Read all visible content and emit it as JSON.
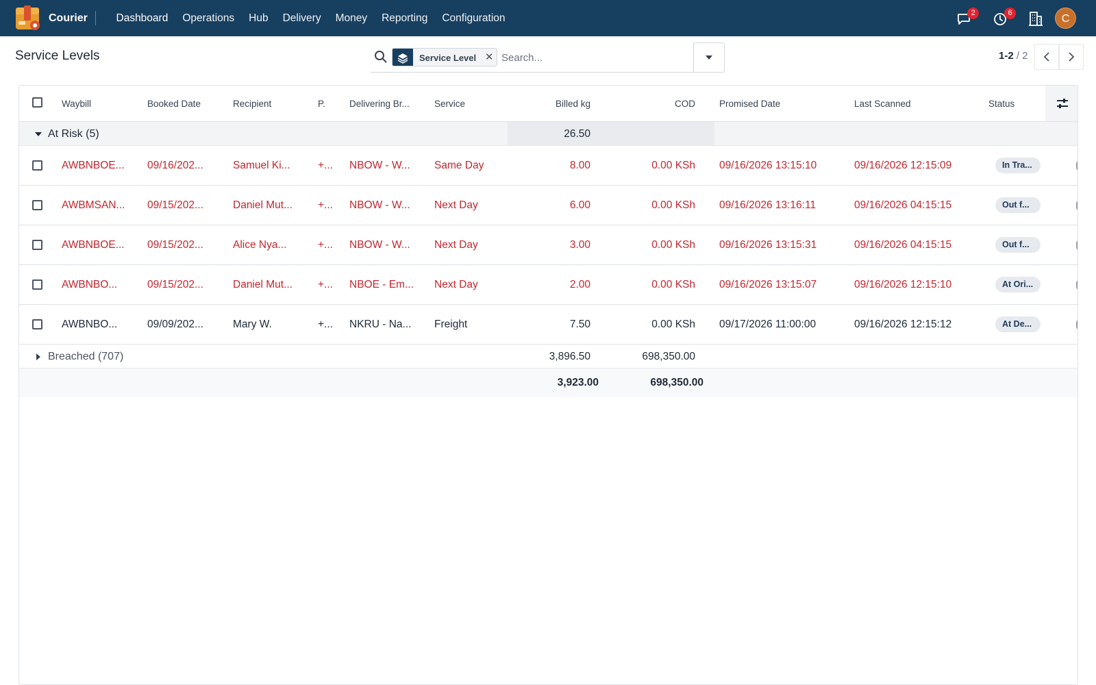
{
  "app": {
    "name": "Courier",
    "menu": [
      "Dashboard",
      "Operations",
      "Hub",
      "Delivery",
      "Money",
      "Reporting",
      "Configuration"
    ],
    "messages_badge": "2",
    "activities_badge": "6",
    "avatar_initial": "C"
  },
  "control_panel": {
    "title": "Service Levels",
    "facet_label": "Service Level",
    "search_placeholder": "Search...",
    "pager_value": "1-2",
    "pager_limit": "/ 2"
  },
  "table": {
    "columns": {
      "waybill": "Waybill",
      "booked_date": "Booked Date",
      "recipient": "Recipient",
      "phone": "P.",
      "delivering_branch": "Delivering Br...",
      "service": "Service",
      "billed_kg": "Billed kg",
      "cod": "COD",
      "promised_date": "Promised Date",
      "last_scanned": "Last Scanned",
      "status": "Status"
    },
    "group_at_risk": {
      "label": "At Risk (5)",
      "billed_kg": "26.50",
      "expanded": true
    },
    "rows": [
      {
        "waybill": "AWBNBOE...",
        "booked": "09/16/202...",
        "recipient": "Samuel Ki...",
        "phone": "+...",
        "branch": "NBOW - W...",
        "service": "Same Day",
        "billed_kg": "8.00",
        "cod": "0.00 KSh",
        "promised": "09/16/2026 13:15:10",
        "scanned": "09/16/2026 12:15:09",
        "status": "In Tra...",
        "overdue": true
      },
      {
        "waybill": "AWBMSAN...",
        "booked": "09/15/202...",
        "recipient": "Daniel Mut...",
        "phone": "+...",
        "branch": "NBOW - W...",
        "service": "Next Day",
        "billed_kg": "6.00",
        "cod": "0.00 KSh",
        "promised": "09/16/2026 13:16:11",
        "scanned": "09/16/2026 04:15:15",
        "status": "Out f...",
        "overdue": true
      },
      {
        "waybill": "AWBNBOE...",
        "booked": "09/15/202...",
        "recipient": "Alice Nya...",
        "phone": "+...",
        "branch": "NBOW - W...",
        "service": "Next Day",
        "billed_kg": "3.00",
        "cod": "0.00 KSh",
        "promised": "09/16/2026 13:15:31",
        "scanned": "09/16/2026 04:15:15",
        "status": "Out f...",
        "overdue": true
      },
      {
        "waybill": "AWBNBO...",
        "booked": "09/15/202...",
        "recipient": "Daniel Mut...",
        "phone": "+...",
        "branch": "NBOE - Em...",
        "service": "Next Day",
        "billed_kg": "2.00",
        "cod": "0.00 KSh",
        "promised": "09/16/2026 13:15:07",
        "scanned": "09/16/2026 12:15:10",
        "status": "At Ori...",
        "overdue": true
      },
      {
        "waybill": "AWBNBO...",
        "booked": "09/09/202...",
        "recipient": "Mary W.",
        "phone": "+...",
        "branch": "NKRU - Na...",
        "service": "Freight",
        "billed_kg": "7.50",
        "cod": "0.00 KSh",
        "promised": "09/17/2026 11:00:00",
        "scanned": "09/16/2026 12:15:12",
        "status": "At De...",
        "overdue": false
      }
    ],
    "group_breached": {
      "label": "Breached (707)",
      "billed_kg": "3,896.50",
      "cod": "698,350.00",
      "expanded": false
    },
    "totals": {
      "billed_kg": "3,923.00",
      "cod": "698,350.00"
    }
  },
  "colors": {
    "navbar": "#173f5f",
    "danger_text": "#c4262e",
    "badge": "#e0242f",
    "avatar": "#c8702a"
  }
}
